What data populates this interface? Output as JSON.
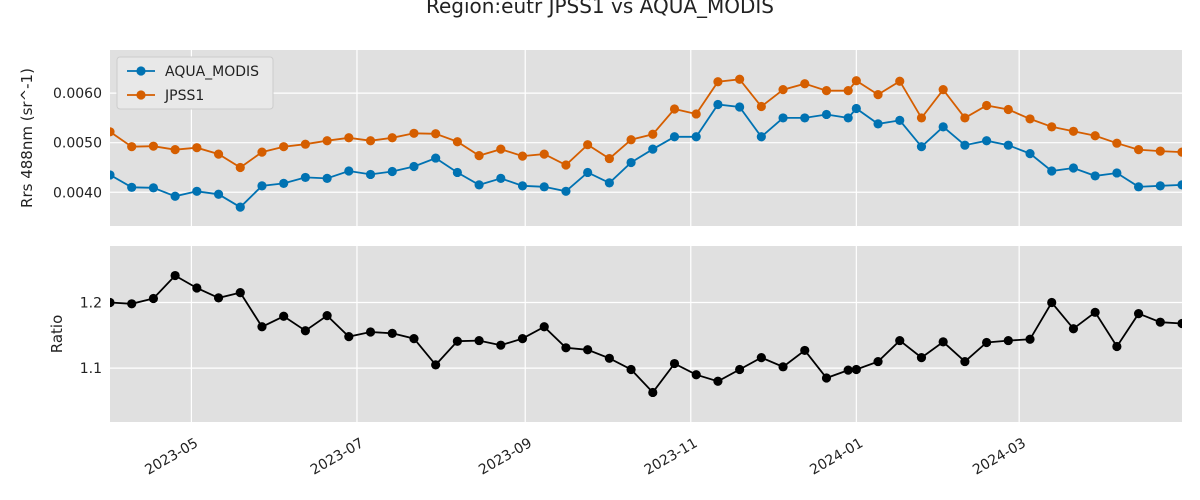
{
  "figure": {
    "title": "Region:eutr JPSS1 vs AQUA_MODIS"
  },
  "chart_data": [
    {
      "type": "line",
      "ylabel": "Rrs 488nm (sr^-1)",
      "xlabel": "",
      "ylim": [
        0.00332,
        0.00687
      ],
      "yticks": [
        0.004,
        0.005,
        0.006
      ],
      "ytick_labels": [
        "0.0040",
        "0.0050",
        "0.0060"
      ],
      "grid": true,
      "legend": "top-left",
      "x": [
        "2023-04-01",
        "2023-04-09",
        "2023-04-17",
        "2023-04-25",
        "2023-05-03",
        "2023-05-11",
        "2023-05-19",
        "2023-05-27",
        "2023-06-04",
        "2023-06-12",
        "2023-06-20",
        "2023-06-28",
        "2023-07-06",
        "2023-07-14",
        "2023-07-22",
        "2023-07-30",
        "2023-08-07",
        "2023-08-15",
        "2023-08-23",
        "2023-08-31",
        "2023-09-08",
        "2023-09-16",
        "2023-09-24",
        "2023-10-02",
        "2023-10-10",
        "2023-10-18",
        "2023-10-26",
        "2023-11-03",
        "2023-11-11",
        "2023-11-19",
        "2023-11-27",
        "2023-12-05",
        "2023-12-13",
        "2023-12-21",
        "2023-12-29",
        "2024-01-01",
        "2024-01-09",
        "2024-01-17",
        "2024-01-25",
        "2024-02-02",
        "2024-02-10",
        "2024-02-18",
        "2024-02-26",
        "2024-03-05",
        "2024-03-13",
        "2024-03-21",
        "2024-03-29",
        "2024-04-06",
        "2024-04-14",
        "2024-04-22",
        "2024-04-30"
      ],
      "series": [
        {
          "name": "AQUA_MODIS",
          "color": "#0072b2",
          "values": [
            0.00435,
            0.0041,
            0.00409,
            0.00392,
            0.00402,
            0.00396,
            0.0037,
            0.00413,
            0.00418,
            0.0043,
            0.00428,
            0.00443,
            0.00436,
            0.00442,
            0.00452,
            0.00469,
            0.0044,
            0.00415,
            0.00428,
            0.00413,
            0.00411,
            0.00402,
            0.0044,
            0.00419,
            0.0046,
            0.00487,
            0.00512,
            0.00512,
            0.00577,
            0.00572,
            0.00512,
            0.0055,
            0.0055,
            0.00557,
            0.0055,
            0.00569,
            0.00538,
            0.00545,
            0.00492,
            0.00532,
            0.00495,
            0.00504,
            0.00495,
            0.00478,
            0.00443,
            0.00449,
            0.00433,
            0.00439,
            0.00411,
            0.00413,
            0.00415
          ]
        },
        {
          "name": "JPSS1",
          "color": "#d55e00",
          "values": [
            0.00522,
            0.00492,
            0.00493,
            0.00486,
            0.0049,
            0.00477,
            0.0045,
            0.00481,
            0.00492,
            0.00497,
            0.00504,
            0.0051,
            0.00504,
            0.0051,
            0.00519,
            0.00518,
            0.00502,
            0.00474,
            0.00487,
            0.00473,
            0.00477,
            0.00455,
            0.00496,
            0.00468,
            0.00506,
            0.00517,
            0.00568,
            0.00558,
            0.00623,
            0.00628,
            0.00573,
            0.00607,
            0.00619,
            0.00605,
            0.00605,
            0.00625,
            0.00597,
            0.00624,
            0.0055,
            0.00607,
            0.0055,
            0.00575,
            0.00567,
            0.00548,
            0.00532,
            0.00523,
            0.00514,
            0.00499,
            0.00486,
            0.00483,
            0.00481
          ]
        }
      ]
    },
    {
      "type": "line",
      "ylabel": "Ratio",
      "xlabel": "",
      "ylim": [
        1.018,
        1.286
      ],
      "yticks": [
        1.1,
        1.2
      ],
      "ytick_labels": [
        "1.1",
        "1.2"
      ],
      "grid": true,
      "x": [
        "2023-04-01",
        "2023-04-09",
        "2023-04-17",
        "2023-04-25",
        "2023-05-03",
        "2023-05-11",
        "2023-05-19",
        "2023-05-27",
        "2023-06-04",
        "2023-06-12",
        "2023-06-20",
        "2023-06-28",
        "2023-07-06",
        "2023-07-14",
        "2023-07-22",
        "2023-07-30",
        "2023-08-07",
        "2023-08-15",
        "2023-08-23",
        "2023-08-31",
        "2023-09-08",
        "2023-09-16",
        "2023-09-24",
        "2023-10-02",
        "2023-10-10",
        "2023-10-18",
        "2023-10-26",
        "2023-11-03",
        "2023-11-11",
        "2023-11-19",
        "2023-11-27",
        "2023-12-05",
        "2023-12-13",
        "2023-12-21",
        "2023-12-29",
        "2024-01-01",
        "2024-01-09",
        "2024-01-17",
        "2024-01-25",
        "2024-02-02",
        "2024-02-10",
        "2024-02-18",
        "2024-02-26",
        "2024-03-05",
        "2024-03-13",
        "2024-03-21",
        "2024-03-29",
        "2024-04-06",
        "2024-04-14",
        "2024-04-22",
        "2024-04-30"
      ],
      "series": [
        {
          "color": "#000000",
          "values": [
            1.2,
            1.198,
            1.206,
            1.241,
            1.222,
            1.207,
            1.215,
            1.163,
            1.179,
            1.157,
            1.18,
            1.148,
            1.155,
            1.153,
            1.145,
            1.105,
            1.141,
            1.142,
            1.135,
            1.145,
            1.163,
            1.131,
            1.128,
            1.115,
            1.098,
            1.063,
            1.107,
            1.09,
            1.08,
            1.098,
            1.116,
            1.102,
            1.127,
            1.085,
            1.097,
            1.098,
            1.11,
            1.142,
            1.116,
            1.14,
            1.11,
            1.139,
            1.142,
            1.144,
            1.2,
            1.16,
            1.185,
            1.133,
            1.183,
            1.17,
            1.168
          ]
        }
      ]
    }
  ],
  "xaxis": {
    "ticks": [
      "2023-05-01",
      "2023-07-01",
      "2023-09-01",
      "2023-11-01",
      "2024-01-01",
      "2024-03-01"
    ],
    "tick_labels": [
      "2023-05",
      "2023-07",
      "2023-09",
      "2023-11",
      "2024-01",
      "2024-03"
    ],
    "xlim": [
      "2023-04-01",
      "2024-04-30"
    ]
  }
}
